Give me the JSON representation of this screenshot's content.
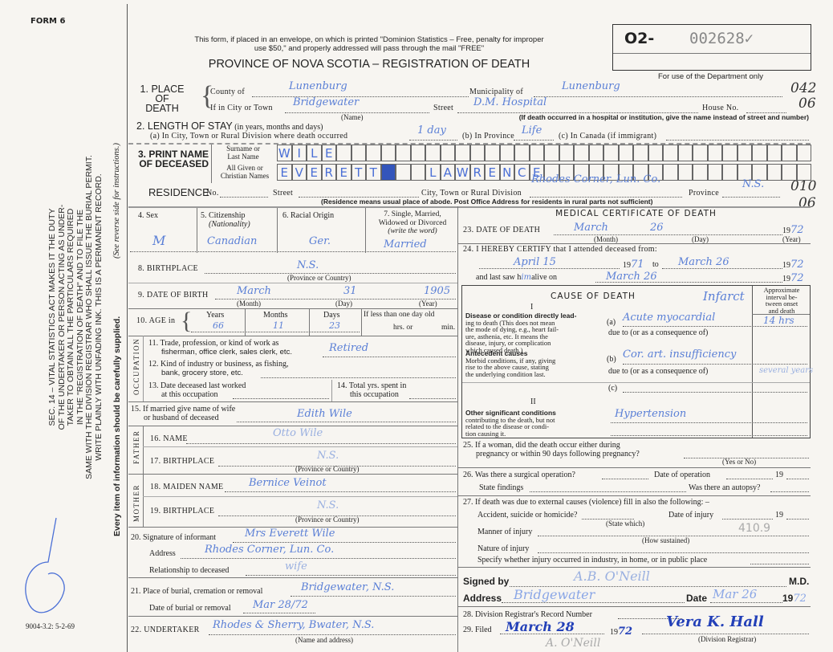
{
  "form_label": "FORM 6",
  "form_code": "9004-3.2: 5-2-69",
  "side_notice": {
    "lines": [
      "SEC. 14 – VITAL STATISTICS ACT MAKES IT THE DUTY",
      "OF THE UNDERTAKER OR PERSON ACTING AS UNDER-",
      "TAKER TO OBTAIN ALL THE PARTICULARS REQUIRED",
      "IN THE \"REGISTRATION OF DEATH\" AND TO FILE THE",
      "SAME WITH THE DIVISION REGISTRAR WHO SHALL ISSUE THE BURIAL PERMIT.",
      "WRITE PLAINLY WITH UNFADING INK. THIS IS A PERMANENT RECORD."
    ],
    "footer": "Every item of information should be carefully supplied.",
    "see_reverse": "(See reverse side for instructions.)"
  },
  "header": {
    "notice_line1": "This form, if placed in an envelope, on which is printed \"Dominion Statistics – Free, penalty for improper",
    "notice_line2": "use $50,\" and properly addressed will pass through the mail \"FREE\"",
    "title": "PROVINCE OF NOVA SCOTIA – REGISTRATION OF DEATH"
  },
  "registration": {
    "prefix": "O2-",
    "number": "002628✓"
  },
  "department": {
    "label": "For use of the Department only",
    "codes": [
      "042",
      "06",
      "010",
      "06"
    ]
  },
  "s1": {
    "label": "1. PLACE OF DEATH",
    "county_label": "County of",
    "county": "Lunenburg",
    "municipality_label": "Municipality of",
    "municipality": "Lunenburg",
    "city_label": "If in City or Town",
    "city": "Bridgewater",
    "name_caption": "(Name)",
    "street_label": "Street",
    "street": "D.M. Hospital",
    "house_label": "House No.",
    "note": "(If death occurred in a hospital or institution, give the name instead of street and number)"
  },
  "s2": {
    "label": "2. LENGTH OF STAY",
    "sub": "(in years, months and days)",
    "a_label": "(a) In City, Town or Rural Division where death occurred",
    "a": "1 day",
    "b_label": "(b) In Province",
    "b": "Life",
    "c_label": "(c) In Canada (if immigrant)"
  },
  "s3": {
    "label1": "3. PRINT NAME",
    "label2": "OF DECEASED",
    "surname_label1": "Surname or",
    "surname_label2": "Last Name",
    "given_label1": "All Given or",
    "given_label2": "Christian Names",
    "surname": "WILE",
    "given": "EVERETT■  LAWRENCE"
  },
  "residence": {
    "label": "RESIDENCE",
    "no_label": "No.",
    "street_label": "Street",
    "city_label": "City, Town or Rural Division",
    "city": "Rhodes Corner, Lun. Co.",
    "province_label": "Province",
    "province": "N.S.",
    "note": "(Residence means usual place of abode. Post Office Address for residents in rural parts not sufficient)"
  },
  "s4": {
    "label": "4. Sex",
    "value": "M"
  },
  "s5": {
    "label": "5. Citizenship",
    "sub": "(Nationality)",
    "value": "Canadian"
  },
  "s6": {
    "label": "6. Racial Origin",
    "value": "Ger."
  },
  "s7": {
    "label1": "7. Single, Married,",
    "label2": "Widowed or Divorced",
    "sub": "(write the word)",
    "value": "Married"
  },
  "s8": {
    "label": "8. BIRTHPLACE",
    "value": "N.S.",
    "caption": "(Province or Country)"
  },
  "s9": {
    "label": "9. DATE OF BIRTH",
    "month": "March",
    "day": "31",
    "year": "1905",
    "month_caption": "(Month)",
    "day_caption": "(Day)",
    "year_caption": "(Year)"
  },
  "s10": {
    "label": "10. AGE in",
    "years_label": "Years",
    "years": "66",
    "months_label": "Months",
    "months": "11",
    "days_label": "Days",
    "days": "23",
    "less_label": "If less than one day old",
    "hrs": "hrs. or",
    "min": "min."
  },
  "occupation_label": "OCCUPATION",
  "s11": {
    "label1": "11. Trade, profession, or kind of work as",
    "label2": "fisherman, office clerk, sales clerk, etc.",
    "value": "Retired"
  },
  "s12": {
    "label1": "12. Kind of industry or business, as fishing,",
    "label2": "bank, grocery store, etc."
  },
  "s13": {
    "label1": "13. Date deceased last worked",
    "label2": "at this occupation"
  },
  "s14": {
    "label1": "14. Total yrs. spent in",
    "label2": "this occupation"
  },
  "s15": {
    "label1": "15. If married give name of wife",
    "label2": "or husband of deceased",
    "value": "Edith Wile"
  },
  "father_label": "FATHER",
  "mother_label": "MOTHER",
  "s16": {
    "label": "16. NAME",
    "value": "Otto Wile"
  },
  "s17": {
    "label": "17. BIRTHPLACE",
    "value": "N.S.",
    "caption": "(Province or Country)"
  },
  "s18": {
    "label": "18. MAIDEN NAME",
    "value": "Bernice Veinot"
  },
  "s19": {
    "label": "19. BIRTHPLACE",
    "value": "N.S.",
    "caption": "(Province or Country)"
  },
  "s20": {
    "label": "20. Signature of informant",
    "value": "Mrs Everett Wile",
    "address_label": "Address",
    "address": "Rhodes Corner, Lun. Co.",
    "rel_label": "Relationship to deceased",
    "rel": "wife"
  },
  "s21": {
    "label": "21. Place of burial, cremation or removal",
    "value": "Bridgewater, N.S.",
    "date_label": "Date of burial or removal",
    "date": "Mar 28/72"
  },
  "s22": {
    "label": "22. UNDERTAKER",
    "value": "Rhodes & Sherry, Bwater, N.S.",
    "caption": "(Name and address)"
  },
  "medical": {
    "title": "MEDICAL CERTIFICATE OF DEATH"
  },
  "s23": {
    "label": "23. DATE OF DEATH",
    "month": "March",
    "day": "26",
    "prefix": "19",
    "year": "72",
    "month_caption": "(Month)",
    "day_caption": "(Day)",
    "year_caption": "(Year)"
  },
  "s24": {
    "label": "24. I HEREBY CERTIFY that I attended deceased from:",
    "from": "April 15",
    "from_prefix": "19",
    "from_year": "71",
    "to": "to",
    "to_date": "March 26",
    "to_prefix": "19",
    "to_year": "72",
    "last_saw_label": "and last saw h",
    "last_saw_him": "im",
    "alive_on": "alive on",
    "last_saw": "March 26",
    "ls_prefix": "19",
    "ls_year": "72"
  },
  "cause": {
    "title": "CAUSE OF DEATH",
    "note": "Infarct",
    "interval_label": [
      "Approximate",
      "interval be-",
      "tween onset",
      "and death"
    ],
    "part1": "I",
    "direct_title": "Disease or condition directly lead-",
    "direct_text": [
      "ing to death (This does not mean",
      "the mode of dying, e.g., heart fail-",
      "ure, asthenia, etc. It means the",
      "disease, injury, or complication",
      "which caused death.)"
    ],
    "antecedent_title": "Antecedent causes",
    "antecedent_text": [
      "Morbid conditions, if any, giving",
      "rise to the above cause, stating",
      "the underlying condition last."
    ],
    "a_label": "(a)",
    "a": "Acute myocardial",
    "a_interval": "14 hrs",
    "due1": "due to (or as a consequence of)",
    "b_label": "(b)",
    "b": "Cor. art. insufficiency",
    "b_interval": "several years",
    "due2": "due to (or as a consequence of)",
    "c_label": "(c)",
    "part2": "II",
    "other_title": "Other significant conditions",
    "other_text": [
      "contributing to the death, but not",
      "related to the disease or condi-",
      "tion causing it."
    ],
    "other": "Hypertension"
  },
  "s25": {
    "label1": "25. If a woman, did the death occur either during",
    "label2": "pregnancy or within 90 days following pregnancy?",
    "caption": "(Yes or No)"
  },
  "s26": {
    "label": "26. Was there a surgical operation?",
    "date_label": "Date of operation",
    "prefix": "19",
    "findings_label": "State findings",
    "autopsy_label": "Was there an autopsy?"
  },
  "s27": {
    "label": "27. If death was due to external causes (violence) fill in also the following: –",
    "accident_label": "Accident, suicide or homicide?",
    "state_caption": "(State which)",
    "date_label": "Date of injury",
    "prefix": "19",
    "manner_label": "Manner of injury",
    "how_caption": "(How sustained)",
    "code": "410.9",
    "nature_label": "Nature of injury",
    "specify_label": "Specify whether injury occurred in industry, in home, or in public place"
  },
  "signed": {
    "label": "Signed by",
    "value": "A.B. O'Neill",
    "md": "M.D.",
    "address_label": "Address",
    "address": "Bridgewater",
    "date_label": "Date",
    "date": "Mar 26",
    "prefix": "19",
    "year": "72"
  },
  "s28": {
    "label": "28. Division Registrar's Record Number"
  },
  "s29": {
    "label": "29. Filed",
    "date": "March 28",
    "prefix": "19",
    "year": "72",
    "registrar": "Vera K. Hall",
    "caption": "(Division Registrar)",
    "note": "A. O'Neill"
  }
}
